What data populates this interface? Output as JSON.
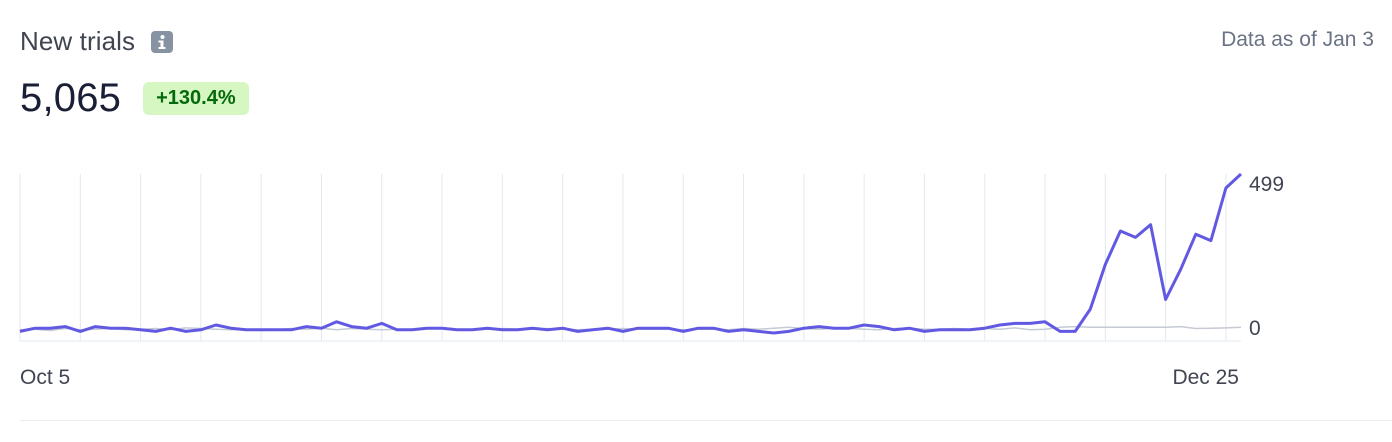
{
  "header": {
    "title": "New trials",
    "as_of": "Data as of Jan 3",
    "value": "5,065",
    "change": "+130.4%"
  },
  "colors": {
    "current": "#6259e3",
    "previous": "#c5cad3",
    "badge_bg": "#d7f7c2",
    "badge_fg": "#05690d"
  },
  "icons": {
    "info": "info-icon"
  },
  "chart_data": {
    "type": "line",
    "x_tick_labels": [
      "Oct 5",
      "Dec 25"
    ],
    "y_tick_labels": [
      "0",
      "499"
    ],
    "ylim": [
      0,
      499
    ],
    "grid": "vertical",
    "series": [
      {
        "role": "current",
        "values": [
          5,
          15,
          15,
          20,
          5,
          20,
          15,
          15,
          10,
          5,
          15,
          5,
          10,
          25,
          15,
          10,
          10,
          10,
          10,
          20,
          15,
          35,
          20,
          15,
          30,
          10,
          10,
          15,
          15,
          10,
          10,
          15,
          10,
          10,
          15,
          10,
          15,
          5,
          10,
          15,
          5,
          15,
          15,
          15,
          5,
          15,
          15,
          5,
          10,
          5,
          0,
          5,
          15,
          20,
          15,
          15,
          25,
          20,
          10,
          15,
          5,
          10,
          10,
          10,
          15,
          25,
          30,
          30,
          35,
          5,
          5,
          75,
          215,
          320,
          300,
          340,
          105,
          200,
          310,
          290,
          455,
          499
        ]
      },
      {
        "role": "previous",
        "values": [
          10,
          12,
          8,
          14,
          10,
          12,
          15,
          10,
          12,
          14,
          10,
          16,
          14,
          12,
          10,
          12,
          8,
          10,
          14,
          12,
          15,
          10,
          14,
          12,
          10,
          12,
          12,
          14,
          15,
          12,
          10,
          12,
          14,
          12,
          12,
          14,
          12,
          10,
          12,
          12,
          14,
          12,
          12,
          12,
          10,
          12,
          12,
          10,
          14,
          12,
          15,
          18,
          14,
          12,
          15,
          14,
          12,
          10,
          14,
          15,
          12,
          12,
          14,
          12,
          14,
          12,
          16,
          10,
          12,
          18,
          20,
          18,
          18,
          18,
          18,
          18,
          18,
          20,
          14,
          15,
          16,
          18
        ]
      }
    ]
  }
}
